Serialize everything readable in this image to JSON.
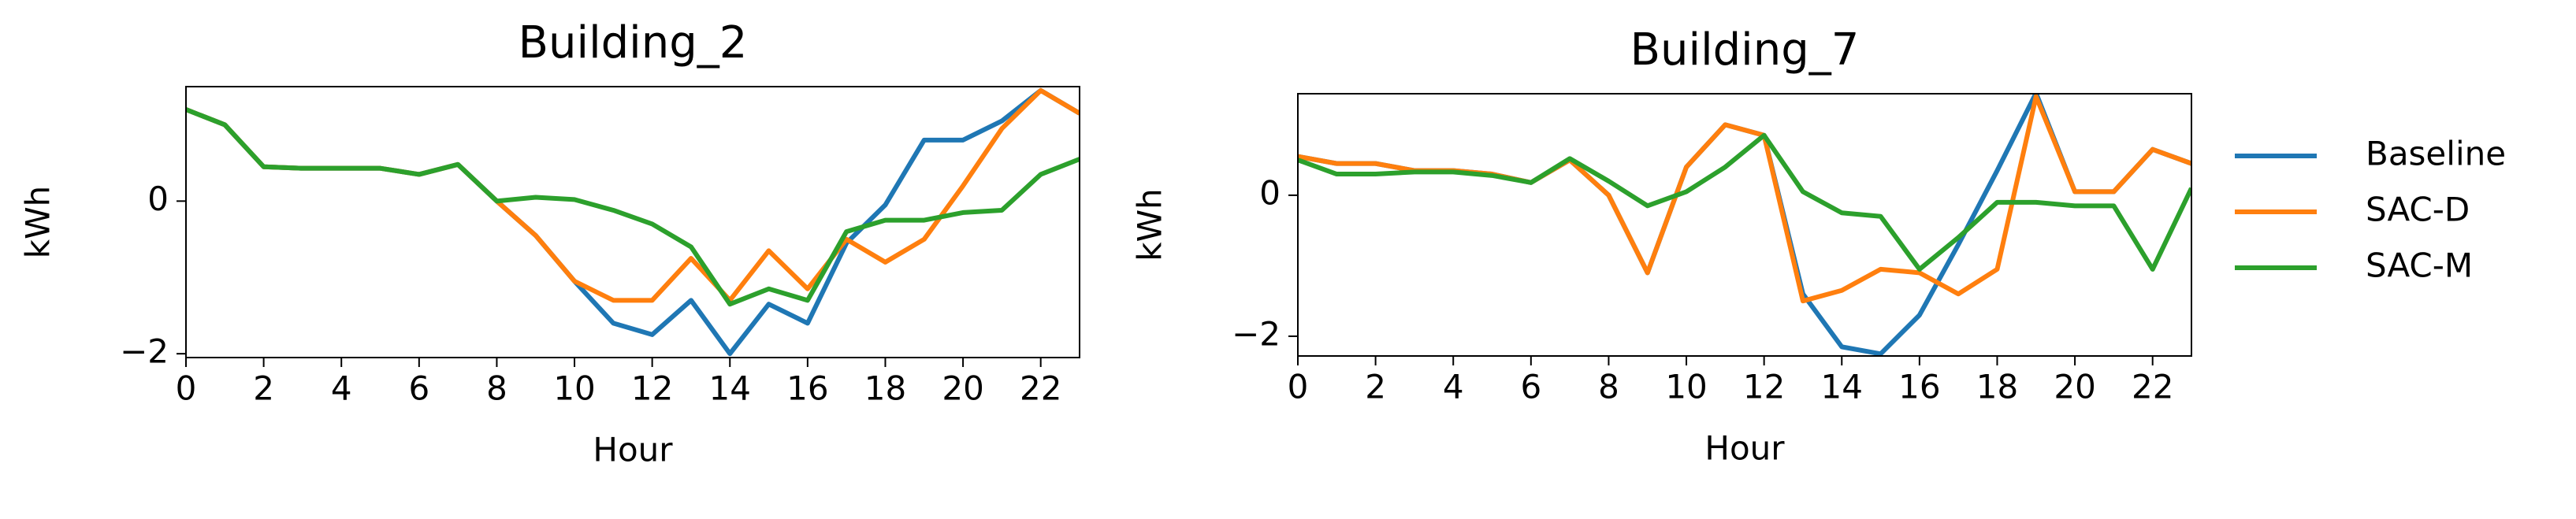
{
  "chart_data": [
    {
      "type": "line",
      "title": "Building_2",
      "x_label": "Hour",
      "y_label": "kWh",
      "x": [
        0,
        1,
        2,
        3,
        4,
        5,
        6,
        7,
        8,
        9,
        10,
        11,
        12,
        13,
        14,
        15,
        16,
        17,
        18,
        19,
        20,
        21,
        22,
        23
      ],
      "xlim": [
        0,
        23
      ],
      "xticks": [
        0,
        2,
        4,
        6,
        8,
        10,
        12,
        14,
        16,
        18,
        20,
        22
      ],
      "ylim": [
        -2.05,
        1.5
      ],
      "yticks": [
        {
          "value": -2,
          "label": "−2"
        },
        0
      ],
      "series": [
        {
          "color": "#1f77b4",
          "values": [
            1.2,
            1.0,
            0.45,
            0.43,
            0.43,
            0.43,
            0.35,
            0.48,
            0.0,
            -0.45,
            -1.05,
            -1.6,
            -1.75,
            -1.3,
            -2.0,
            -1.35,
            -1.6,
            -0.55,
            -0.05,
            0.8,
            0.8,
            1.05,
            1.45,
            1.15
          ]
        },
        {
          "color": "#ff7f0e",
          "values": [
            1.2,
            1.0,
            0.45,
            0.43,
            0.43,
            0.43,
            0.35,
            0.48,
            0.0,
            -0.45,
            -1.05,
            -1.3,
            -1.3,
            -0.75,
            -1.3,
            -0.65,
            -1.15,
            -0.5,
            -0.8,
            -0.5,
            0.2,
            0.95,
            1.45,
            1.15
          ]
        },
        {
          "color": "#2ca02c",
          "values": [
            1.2,
            1.0,
            0.45,
            0.43,
            0.43,
            0.43,
            0.35,
            0.48,
            0.0,
            0.05,
            0.02,
            -0.12,
            -0.3,
            -0.6,
            -1.35,
            -1.15,
            -1.3,
            -0.4,
            -0.25,
            -0.25,
            -0.15,
            -0.12,
            0.35,
            0.55
          ]
        }
      ]
    },
    {
      "type": "line",
      "title": "Building_7",
      "x_label": "Hour",
      "y_label": "kWh",
      "legend": "right-outside",
      "x": [
        0,
        1,
        2,
        3,
        4,
        5,
        6,
        7,
        8,
        9,
        10,
        11,
        12,
        13,
        14,
        15,
        16,
        17,
        18,
        19,
        20,
        21,
        22,
        23
      ],
      "xlim": [
        0,
        23
      ],
      "xticks": [
        0,
        2,
        4,
        6,
        8,
        10,
        12,
        14,
        16,
        18,
        20,
        22
      ],
      "ylim": [
        -2.28,
        1.44
      ],
      "yticks": [
        {
          "value": -2,
          "label": "−2"
        },
        0
      ],
      "series": [
        {
          "name": "Baseline",
          "color": "#1f77b4",
          "values": [
            0.55,
            0.45,
            0.45,
            0.35,
            0.35,
            0.3,
            0.18,
            0.5,
            0.0,
            -1.1,
            0.4,
            1.0,
            0.85,
            -1.4,
            -2.15,
            -2.25,
            -1.7,
            -0.7,
            0.35,
            1.45,
            0.05,
            0.05,
            0.65,
            0.45
          ]
        },
        {
          "name": "SAC-D",
          "color": "#ff7f0e",
          "values": [
            0.55,
            0.45,
            0.45,
            0.35,
            0.35,
            0.3,
            0.18,
            0.5,
            0.0,
            -1.1,
            0.4,
            1.0,
            0.85,
            -1.5,
            -1.35,
            -1.05,
            -1.1,
            -1.4,
            -1.05,
            1.4,
            0.05,
            0.05,
            0.65,
            0.45
          ]
        },
        {
          "name": "SAC-M",
          "color": "#2ca02c",
          "values": [
            0.5,
            0.3,
            0.3,
            0.33,
            0.33,
            0.28,
            0.18,
            0.52,
            0.2,
            -0.15,
            0.05,
            0.4,
            0.85,
            0.05,
            -0.25,
            -0.3,
            -1.05,
            -0.6,
            -0.1,
            -0.1,
            -0.15,
            -0.15,
            -1.05,
            0.1
          ]
        }
      ]
    }
  ]
}
